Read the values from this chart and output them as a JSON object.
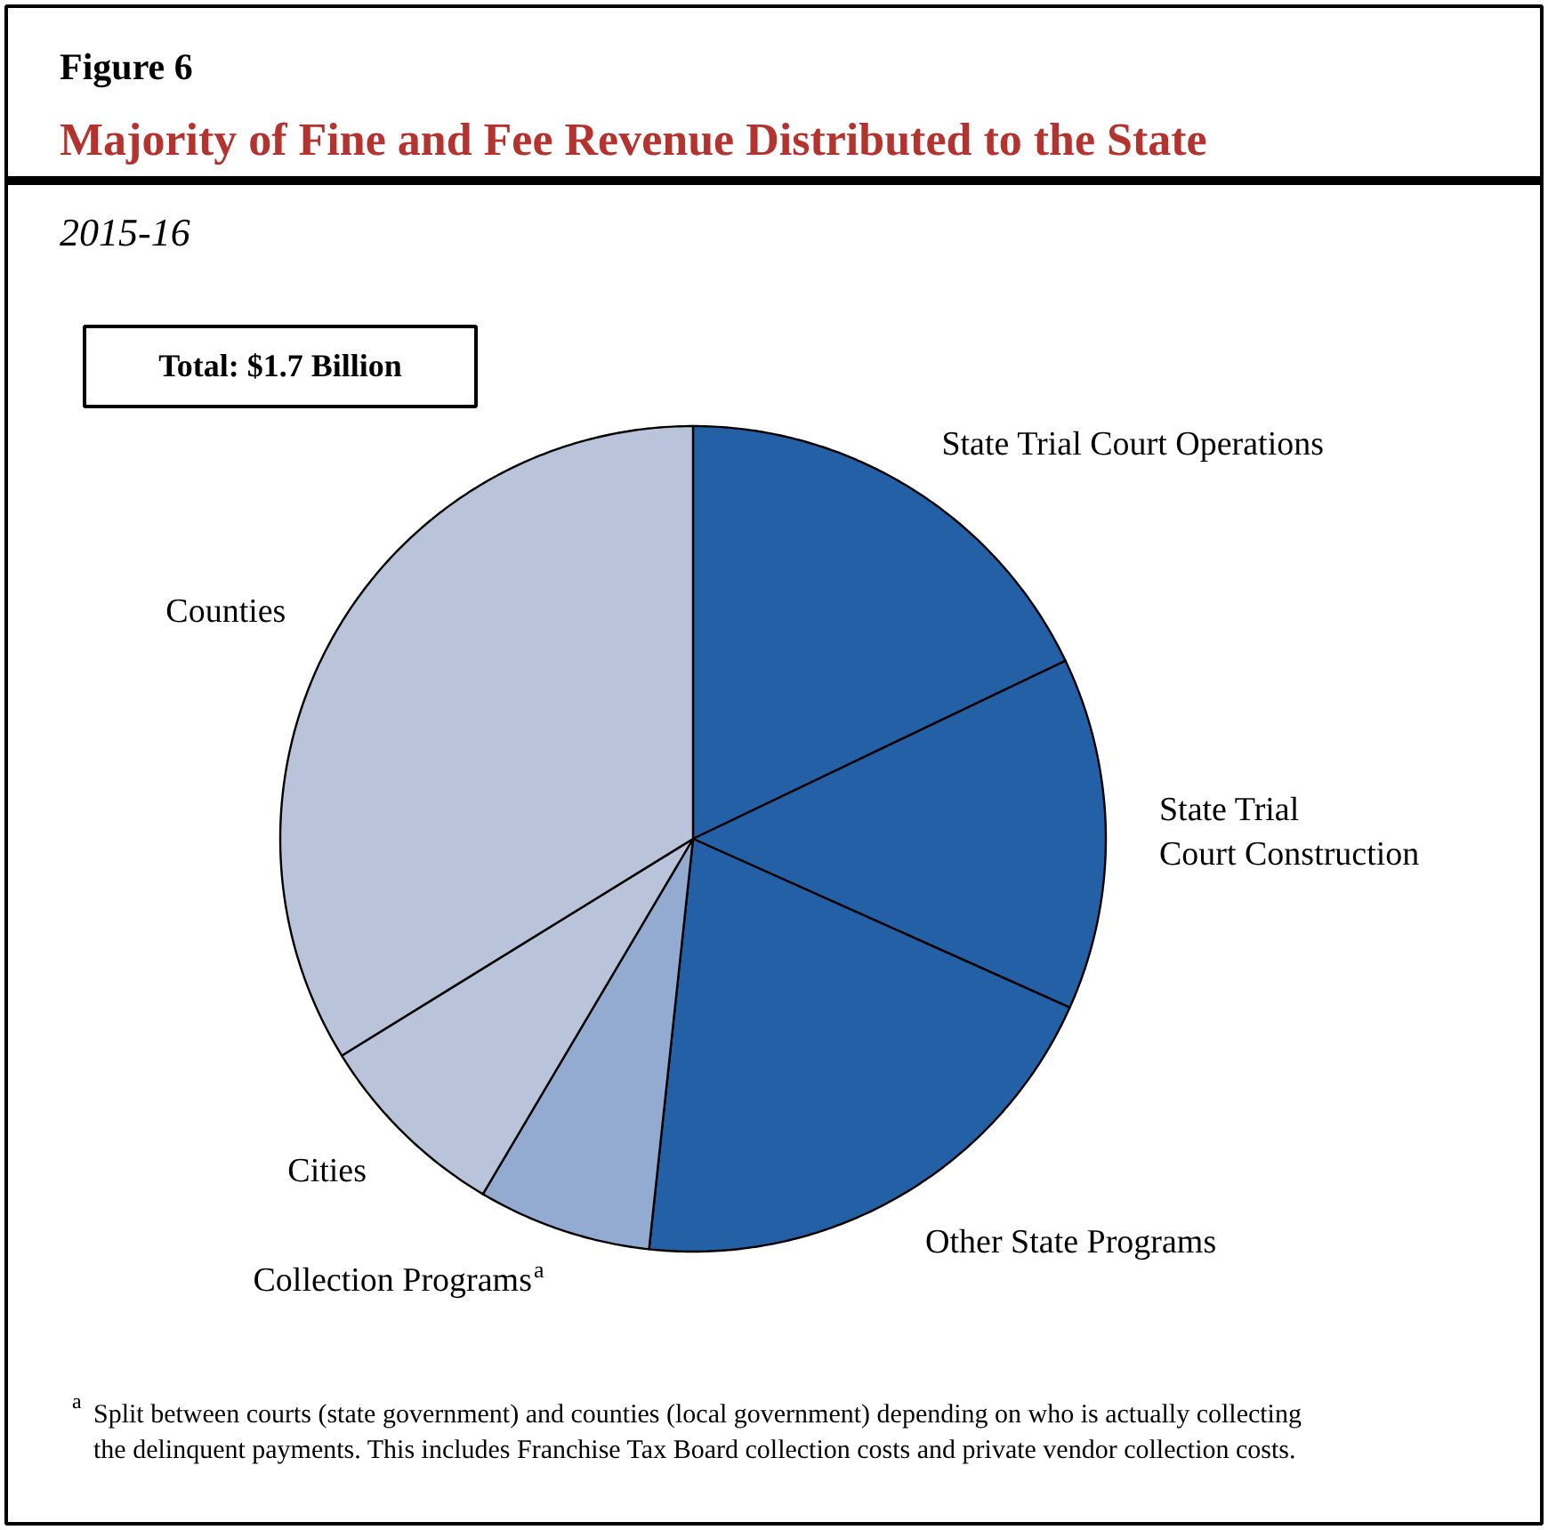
{
  "chart_data": {
    "type": "pie",
    "title": "Majority of Fine and Fee Revenue Distributed to the State",
    "subtitle": "2015-16",
    "annotations": [
      "Figure 6",
      "Total: $1.7 Billion",
      "$^{a}$Split between courts (state government) and counties (local government) depending on who is actually collecting the delinquent payments. This includes Franchise Tax Board collection costs and private vendor collection costs."
    ],
    "categories": [
      "State Trial Court Operations",
      "State Trial\nCourt Construction",
      "Other State Programs",
      "Collection Programs$^{a}$",
      "Cities",
      "Counties"
    ],
    "values": [
      17.9,
      13.8,
      20.0,
      6.8,
      7.7,
      33.8
    ],
    "colors": [
      "#2360a5",
      "#2360a5",
      "#2360a5",
      "#93abd0",
      "#b9c3da",
      "#b9c3da"
    ]
  }
}
